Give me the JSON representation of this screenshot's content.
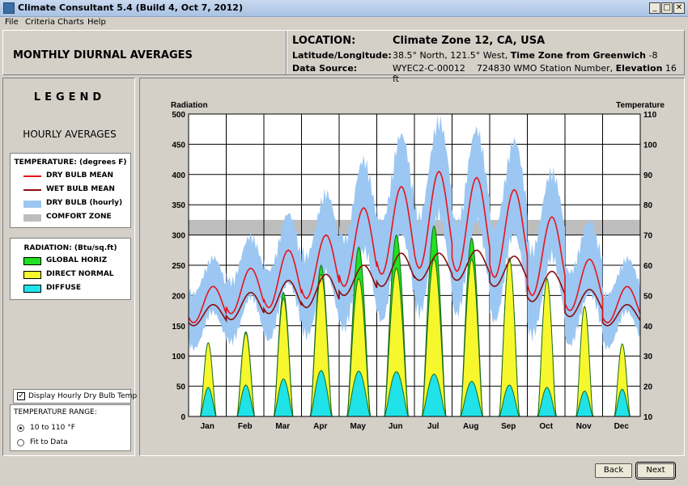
{
  "window": {
    "title": "Climate Consultant 5.4 (Build 4, Oct 7, 2012)",
    "minimize_glyph": "_",
    "maximize_glyph": "□",
    "close_glyph": "✕"
  },
  "menu": [
    "File",
    "Criteria",
    "Charts",
    "Help"
  ],
  "header": {
    "page_title": "MONTHLY DIURNAL AVERAGES",
    "location_label": "LOCATION:",
    "location_value": "Climate Zone 12, CA, USA",
    "latlon_label": "Latitude/Longitude:",
    "latlon_value": "38.5° North, 121.5° West,",
    "timezone_label": "Time Zone from Greenwich",
    "timezone_value": "-8",
    "source_label": "Data Source:",
    "source_value": "WYEC2-C-00012",
    "station_value": "724830 WMO Station Number,",
    "elevation_label": "Elevation",
    "elevation_value": "16 ft"
  },
  "legend": {
    "title": "LEGEND",
    "subtitle": "HOURLY AVERAGES",
    "temperature_head": "TEMPERATURE: (degrees F)",
    "temperature_items": [
      {
        "label": "DRY BULB MEAN",
        "color": "#e8141c"
      },
      {
        "label": "WET BULB MEAN",
        "color": "#8b0d0d"
      },
      {
        "label": "DRY BULB (hourly)",
        "color": "#9cc7f2"
      },
      {
        "label": "COMFORT ZONE",
        "color": "#bdbdbd"
      }
    ],
    "radiation_head": "RADIATION: (Btu/sq.ft)",
    "radiation_items": [
      {
        "label": "GLOBAL HORIZ",
        "color": "#22e022"
      },
      {
        "label": "DIRECT NORMAL",
        "color": "#f7f72e"
      },
      {
        "label": "DIFFUSE",
        "color": "#1fe3e8"
      }
    ],
    "display_hourly_label": "Display Hourly Dry Bulb Temp",
    "display_hourly_checked": true,
    "range_head": "TEMPERATURE RANGE:",
    "range_options": [
      "10 to 110 °F",
      "Fit to Data"
    ],
    "range_selected": 0
  },
  "buttons": {
    "back": "Back",
    "next": "Next"
  },
  "chart_data": {
    "type": "area",
    "y_left_label": "Radiation",
    "y_right_label": "Temperature",
    "y_left_range": [
      0,
      500
    ],
    "y_left_ticks": [
      0,
      50,
      100,
      150,
      200,
      250,
      300,
      350,
      400,
      450,
      500
    ],
    "y_right_range": [
      10,
      110
    ],
    "y_right_ticks": [
      10,
      20,
      30,
      40,
      50,
      60,
      70,
      80,
      90,
      100,
      110
    ],
    "comfort_zone_temp": [
      70,
      75
    ],
    "categories": [
      "Jan",
      "Feb",
      "Mar",
      "Apr",
      "May",
      "Jun",
      "Jul",
      "Aug",
      "Sep",
      "Oct",
      "Nov",
      "Dec"
    ],
    "grid": true,
    "series": [
      {
        "name": "GLOBAL HORIZ",
        "peak_values": [
          110,
          140,
          205,
          250,
          280,
          300,
          315,
          295,
          260,
          220,
          140,
          100
        ]
      },
      {
        "name": "DIRECT NORMAL",
        "peak_values": [
          122,
          138,
          195,
          235,
          228,
          245,
          260,
          260,
          262,
          228,
          182,
          120
        ]
      },
      {
        "name": "DIFFUSE",
        "peak_values": [
          48,
          52,
          62,
          76,
          75,
          74,
          70,
          58,
          52,
          48,
          42,
          45
        ]
      },
      {
        "name": "DRY BULB MEAN",
        "min_values": [
          41,
          44,
          46,
          49,
          53,
          57,
          59,
          58,
          56,
          50,
          45,
          41
        ],
        "max_values": [
          53,
          59,
          65,
          70,
          79,
          86,
          91,
          89,
          85,
          76,
          62,
          53
        ]
      },
      {
        "name": "WET BULB MEAN",
        "min_values": [
          40,
          42,
          44,
          46,
          50,
          53,
          55,
          55,
          53,
          48,
          43,
          40
        ],
        "max_values": [
          47,
          51,
          55,
          57,
          60,
          64,
          64,
          65,
          63,
          58,
          52,
          47
        ]
      },
      {
        "name": "DRY BULB (hourly)",
        "min_values": [
          30,
          32,
          35,
          38,
          42,
          45,
          47,
          48,
          45,
          40,
          34,
          30
        ],
        "max_values": [
          62,
          68,
          75,
          85,
          95,
          102,
          104,
          101,
          99,
          91,
          76,
          61
        ]
      }
    ]
  }
}
